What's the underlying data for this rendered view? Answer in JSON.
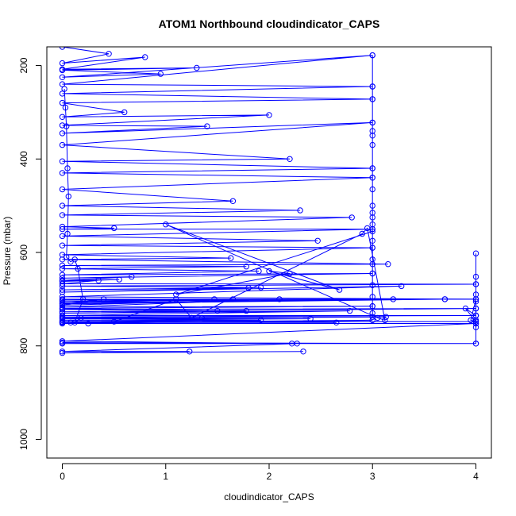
{
  "chart_data": {
    "type": "scatter",
    "title": "ATOM1 Northbound cloudindicator_CAPS",
    "xlabel": "cloudindicator_CAPS",
    "ylabel": "Pressure (mbar)",
    "xlim": [
      -0.15,
      4.15
    ],
    "ylim": [
      1040,
      160
    ],
    "y_inverted": true,
    "xticks": [
      0,
      1,
      2,
      3,
      4
    ],
    "yticks": [
      200,
      400,
      600,
      800,
      1000
    ],
    "grid": false,
    "legend": "none",
    "color": "#0000ff",
    "series": [
      {
        "points": [
          [
            0,
            160
          ],
          [
            0.45,
            175
          ],
          [
            0,
            195
          ],
          [
            0.8,
            182
          ],
          [
            0,
            208
          ],
          [
            1.3,
            205
          ],
          [
            0,
            210
          ],
          [
            0.95,
            218
          ],
          [
            0,
            225
          ],
          [
            3,
            178
          ],
          [
            0,
            240
          ],
          [
            3,
            245
          ],
          [
            0,
            260
          ],
          [
            3,
            272
          ],
          [
            0,
            280
          ],
          [
            0.6,
            300
          ],
          [
            0,
            310
          ],
          [
            2,
            306
          ],
          [
            0,
            328
          ],
          [
            1.4,
            330
          ],
          [
            0,
            345
          ],
          [
            3,
            322
          ],
          [
            0,
            370
          ],
          [
            2.2,
            400
          ],
          [
            0,
            405
          ],
          [
            3,
            420
          ],
          [
            0,
            430
          ],
          [
            3,
            440
          ],
          [
            0,
            465
          ],
          [
            1.65,
            490
          ],
          [
            0,
            500
          ],
          [
            2.3,
            510
          ],
          [
            0,
            520
          ],
          [
            2.8,
            525
          ],
          [
            0,
            545
          ],
          [
            0.5,
            548
          ],
          [
            0,
            550
          ],
          [
            3,
            550
          ],
          [
            0,
            565
          ],
          [
            2.47,
            575
          ],
          [
            0,
            585
          ],
          [
            3,
            590
          ],
          [
            0,
            605
          ],
          [
            1.63,
            612
          ],
          [
            0,
            615
          ],
          [
            3.15,
            625
          ],
          [
            0,
            628
          ],
          [
            1.78,
            630
          ],
          [
            0,
            635
          ],
          [
            1.9,
            640
          ],
          [
            0,
            648
          ],
          [
            3,
            645
          ],
          [
            0,
            655
          ],
          [
            0.67,
            652
          ],
          [
            0,
            660
          ],
          [
            0.55,
            658
          ],
          [
            0,
            662
          ],
          [
            0.35,
            660
          ],
          [
            0,
            667
          ],
          [
            4,
            668
          ],
          [
            0,
            672
          ],
          [
            1.92,
            675
          ],
          [
            0,
            680
          ],
          [
            1.8,
            676
          ],
          [
            0,
            685
          ],
          [
            3.28,
            672
          ],
          [
            0,
            695
          ],
          [
            4,
            700
          ],
          [
            0,
            700
          ],
          [
            1.47,
            700
          ],
          [
            0,
            702
          ],
          [
            3.2,
            700
          ],
          [
            0,
            705
          ],
          [
            1.65,
            700
          ],
          [
            0,
            708
          ],
          [
            3.7,
            700
          ],
          [
            0,
            710
          ],
          [
            0.4,
            700
          ],
          [
            0,
            713
          ],
          [
            2.1,
            700
          ],
          [
            0,
            717
          ],
          [
            3,
            715
          ],
          [
            0,
            720
          ],
          [
            1.5,
            725
          ],
          [
            0,
            722
          ],
          [
            4,
            720
          ],
          [
            0,
            727
          ],
          [
            1.78,
            725
          ],
          [
            0,
            730
          ],
          [
            2.78,
            725
          ],
          [
            0,
            735
          ],
          [
            4,
            735
          ],
          [
            0,
            738
          ],
          [
            1.35,
            740
          ],
          [
            0,
            740
          ],
          [
            3.13,
            738
          ],
          [
            0,
            742
          ],
          [
            2.4,
            742
          ],
          [
            0,
            745
          ],
          [
            1.92,
            745
          ],
          [
            0,
            748
          ],
          [
            4,
            748
          ],
          [
            0,
            749
          ],
          [
            2.65,
            750
          ],
          [
            0,
            750
          ],
          [
            3,
            745
          ],
          [
            0,
            752
          ],
          [
            4,
            752
          ],
          [
            0,
            790
          ],
          [
            2.22,
            795
          ],
          [
            0,
            793
          ],
          [
            4,
            795
          ],
          [
            0,
            795
          ],
          [
            2.27,
            795
          ],
          [
            0,
            812
          ],
          [
            1.23,
            812
          ],
          [
            0,
            815
          ],
          [
            2.33,
            812
          ]
        ]
      },
      {
        "points": [
          [
            3,
            178
          ],
          [
            3,
            245
          ],
          [
            3,
            272
          ],
          [
            3,
            322
          ],
          [
            3,
            340
          ],
          [
            3,
            350
          ],
          [
            3,
            370
          ],
          [
            3,
            420
          ],
          [
            3,
            440
          ],
          [
            3,
            465
          ],
          [
            3,
            500
          ],
          [
            3,
            515
          ],
          [
            3,
            525
          ],
          [
            3,
            540
          ],
          [
            3,
            550
          ],
          [
            3,
            575
          ],
          [
            3,
            590
          ],
          [
            3,
            615
          ],
          [
            3,
            625
          ],
          [
            3,
            645
          ],
          [
            3,
            670
          ],
          [
            3,
            695
          ],
          [
            3,
            715
          ],
          [
            3,
            730
          ],
          [
            3,
            738
          ]
        ]
      },
      {
        "points": [
          [
            4,
            602
          ],
          [
            4,
            652
          ],
          [
            4,
            668
          ],
          [
            4,
            690
          ],
          [
            4,
            700
          ],
          [
            4,
            705
          ],
          [
            4,
            720
          ],
          [
            4,
            735
          ],
          [
            4,
            745
          ],
          [
            4,
            752
          ],
          [
            4,
            760
          ],
          [
            4,
            795
          ]
        ]
      },
      {
        "points": [
          [
            0.02,
            250
          ],
          [
            0.03,
            290
          ],
          [
            0.04,
            330
          ],
          [
            0.05,
            420
          ],
          [
            0.06,
            480
          ],
          [
            0.05,
            560
          ],
          [
            0.04,
            610
          ],
          [
            0.08,
            620
          ],
          [
            0.12,
            615
          ],
          [
            0.15,
            635
          ],
          [
            0.2,
            700
          ],
          [
            0.12,
            750
          ],
          [
            0.18,
            740
          ]
        ]
      },
      {
        "points": [
          [
            3.7,
            700
          ],
          [
            4,
            700
          ],
          [
            3.95,
            745
          ],
          [
            4,
            748
          ],
          [
            3.9,
            720
          ],
          [
            4,
            735
          ]
        ]
      },
      {
        "points": [
          [
            0.08,
            750
          ],
          [
            0.25,
            752
          ],
          [
            0.5,
            748
          ],
          [
            1.1,
            700
          ],
          [
            1.25,
            740
          ],
          [
            2.9,
            560
          ],
          [
            2.95,
            548
          ],
          [
            3.12,
            745
          ],
          [
            3.05,
            740
          ],
          [
            1.0,
            540
          ],
          [
            2.68,
            680
          ],
          [
            2.0,
            640
          ],
          [
            2.2,
            645
          ],
          [
            1.1,
            690
          ],
          [
            3,
            555
          ]
        ]
      }
    ]
  }
}
